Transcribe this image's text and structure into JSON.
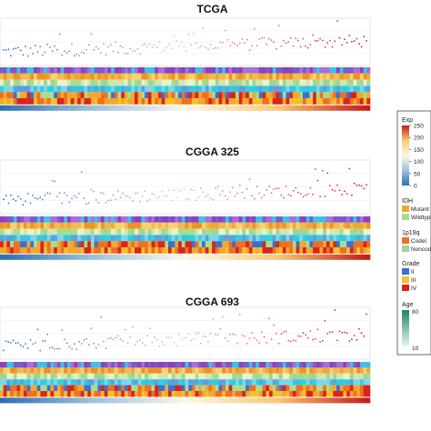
{
  "chart_data": [
    {
      "type": "heatmap",
      "title": "TCGA",
      "scatter_y_range": [
        0,
        250
      ],
      "tracks": [
        "IDH",
        "1p19q",
        "Grade",
        "Age",
        "Exp"
      ]
    },
    {
      "type": "heatmap",
      "title": "CGGA 325",
      "scatter_y_range": [
        0,
        250
      ],
      "tracks": [
        "IDH",
        "1p19q",
        "Grade",
        "Age",
        "Exp"
      ]
    },
    {
      "type": "heatmap",
      "title": "CGGA 693",
      "scatter_y_range": [
        0,
        250
      ],
      "tracks": [
        "IDH",
        "1p19q",
        "Grade",
        "Age",
        "Exp"
      ]
    }
  ],
  "legend": {
    "exp": {
      "title": "Exp",
      "ticks": [
        "250",
        "200",
        "150",
        "100",
        "50",
        "0"
      ],
      "colors": [
        "#c51b1b",
        "#f7c977",
        "#fbf8e6",
        "#9dc2de",
        "#2f6fae"
      ]
    },
    "idh": {
      "title": "IDH",
      "items": [
        {
          "label": "Mutant",
          "color": "#f2a72e"
        },
        {
          "label": "Wildtype",
          "color": "#a8dc8e"
        }
      ]
    },
    "p19q": {
      "title": "1p19q",
      "items": [
        {
          "label": "Codel",
          "color": "#f06f22"
        },
        {
          "label": "Noncodel",
          "color": "#9fd39a"
        }
      ]
    },
    "grade": {
      "title": "Grade",
      "items": [
        {
          "label": "II",
          "color": "#3b6fd6"
        },
        {
          "label": "III",
          "color": "#f5c02c"
        },
        {
          "label": "IV",
          "color": "#d9251c"
        }
      ]
    },
    "age": {
      "title": "Age",
      "ticks": [
        "80",
        "10"
      ],
      "colors": [
        "#1b8a5a",
        "#eaf6f2"
      ]
    }
  }
}
